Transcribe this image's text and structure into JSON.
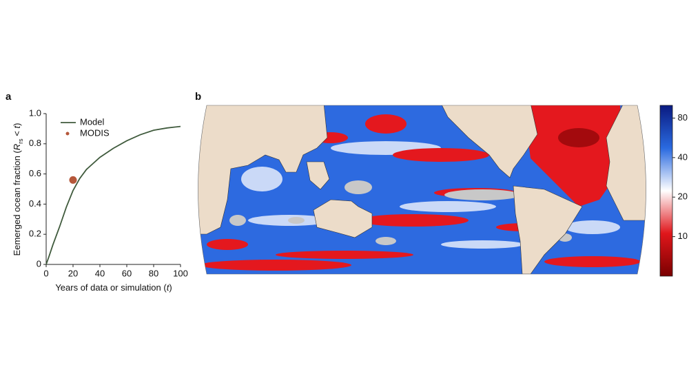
{
  "chart_data": [
    {
      "type": "line",
      "panel_label": "a",
      "ylabel_parts": [
        "Eemerged ocean fraction (",
        "R",
        "rs",
        " < ",
        "t",
        ")"
      ],
      "xlabel_parts": [
        "Years of data or simulation (",
        "t",
        ")"
      ],
      "xlim": [
        0,
        100
      ],
      "xticks": [
        0,
        20,
        40,
        60,
        80,
        100
      ],
      "ylim": [
        0,
        1
      ],
      "yticks": [
        0,
        0.2,
        0.4,
        0.6,
        0.8,
        {
          "value": 1,
          "label": "1.0"
        }
      ],
      "legend": "upper left",
      "series": [
        {
          "name": "Model",
          "color": "#3f5a3c",
          "x": [
            0,
            2,
            5,
            10,
            15,
            20,
            25,
            30,
            40,
            50,
            60,
            70,
            80,
            90,
            100
          ],
          "values": [
            0,
            0.05,
            0.13,
            0.25,
            0.38,
            0.49,
            0.57,
            0.63,
            0.71,
            0.77,
            0.82,
            0.86,
            0.89,
            0.905,
            0.915
          ]
        },
        {
          "name": "MODIS",
          "color": "#b5573a",
          "kind": "scatter",
          "x": [
            20
          ],
          "values": [
            0.56
          ]
        }
      ]
    },
    {
      "type": "map",
      "panel_label": "b",
      "clim": [
        5,
        100
      ],
      "log_scale": true,
      "cticks": [
        10,
        20,
        40,
        80
      ],
      "colormap": [
        "#7a0000",
        "#e0161b",
        "#ffffff",
        "#2a6ae0",
        "#0a1a80"
      ]
    }
  ]
}
